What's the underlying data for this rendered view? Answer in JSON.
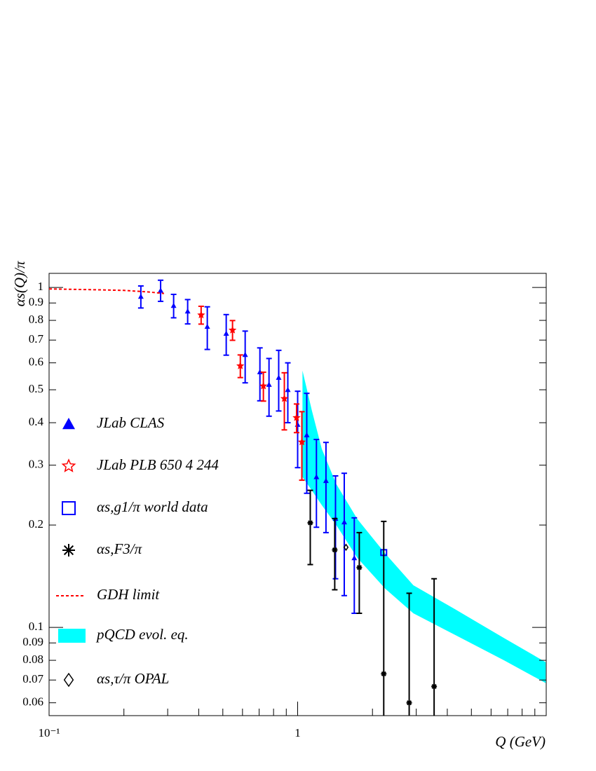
{
  "chart_data": {
    "type": "scatter",
    "x_label": "Q (GeV)",
    "y_label": "αs(Q)/π",
    "xlog": true,
    "ylog": true,
    "xlim": [
      0.1,
      10
    ],
    "ylim": [
      0.055,
      1.1
    ],
    "xticks": [
      {
        "value": 0.1,
        "label": "10⁻¹"
      },
      1
    ],
    "xminor_ticks": [
      0.2,
      0.3,
      0.4,
      0.5,
      0.6,
      0.7,
      0.8,
      0.9,
      2,
      3,
      4,
      5,
      6,
      7,
      8,
      9
    ],
    "yticks": [
      1,
      0.9,
      0.8,
      0.7,
      0.6,
      0.5,
      0.4,
      0.3,
      0.2,
      0.1,
      0.09,
      0.08,
      0.07,
      0.06
    ],
    "series": [
      {
        "name": "JLab CLAS",
        "marker": "triangle",
        "color": "#0000ff",
        "x": [
          0.234,
          0.281,
          0.317,
          0.361,
          0.433,
          0.516,
          0.615,
          0.705,
          0.767,
          0.839,
          0.913,
          1.0,
          1.088,
          1.19,
          1.3,
          1.42,
          1.54,
          1.69
        ],
        "values": [
          0.94,
          0.98,
          0.884,
          0.851,
          0.767,
          0.732,
          0.634,
          0.564,
          0.518,
          0.543,
          0.5,
          0.395,
          0.368,
          0.277,
          0.27,
          0.209,
          0.204,
          0.16
        ],
        "errors": [
          0.07,
          0.07,
          0.07,
          0.07,
          0.11,
          0.1,
          0.11,
          0.1,
          0.1,
          0.11,
          0.1,
          0.1,
          0.12,
          0.08,
          0.08,
          0.07,
          0.08,
          0.05
        ]
      },
      {
        "name": "JLab PLB 650 4 244",
        "marker": "star",
        "color": "#ff0000",
        "x": [
          0.409,
          0.547,
          0.588,
          0.728,
          0.884,
          0.99,
          1.04
        ],
        "values": [
          0.83,
          0.749,
          0.588,
          0.513,
          0.471,
          0.414,
          0.351
        ],
        "errors": [
          0.05,
          0.05,
          0.045,
          0.05,
          0.09,
          0.04,
          0.08
        ]
      },
      {
        "name": "αs,g1/π world data",
        "marker": "square",
        "color": "#0000ff",
        "x": [
          2.22
        ],
        "values": [
          0.166
        ],
        "errors": [
          0
        ]
      },
      {
        "name": "αs,F3/π",
        "marker": "asterisk",
        "color": "#000000",
        "x": [
          1.124,
          1.41,
          1.77,
          2.22,
          2.81,
          3.54
        ],
        "values": [
          0.203,
          0.169,
          0.15,
          0.073,
          0.06,
          0.067
        ],
        "errors": [
          0.05,
          0.04,
          0.04,
          0.132,
          0.066,
          0.072
        ]
      },
      {
        "name": "GDH limit",
        "marker": "dashed-line",
        "color": "#ff0000",
        "x": [
          0.1,
          0.15,
          0.2,
          0.25,
          0.29
        ],
        "values": [
          0.99,
          0.985,
          0.98,
          0.97,
          0.96
        ]
      },
      {
        "name": "pQCD evol. eq.",
        "marker": "band",
        "color": "#00ffff",
        "x": [
          1.046,
          1.14,
          1.25,
          1.43,
          1.74,
          2.25,
          2.92,
          4.3,
          6.77,
          9.95
        ],
        "upper": [
          0.569,
          0.435,
          0.335,
          0.264,
          0.208,
          0.165,
          0.133,
          0.113,
          0.093,
          0.079
        ],
        "lower": [
          0.277,
          0.253,
          0.229,
          0.2,
          0.16,
          0.13,
          0.11,
          0.095,
          0.08,
          0.0686
        ]
      },
      {
        "name": "αs,τ/π OPAL",
        "marker": "diamond",
        "color": "#000000",
        "x": [
          1.565
        ],
        "values": [
          0.172
        ],
        "errors": [
          0
        ]
      }
    ]
  }
}
